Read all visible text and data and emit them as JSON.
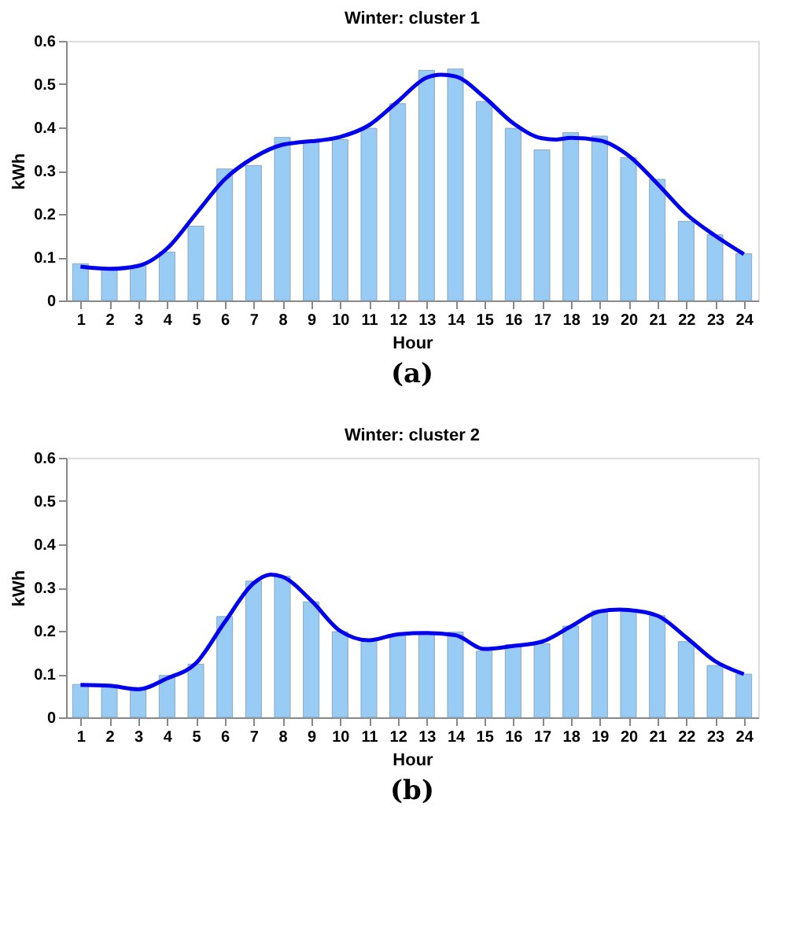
{
  "chart_data": [
    {
      "type": "bar",
      "title": "Winter: cluster 1",
      "xlabel": "Hour",
      "ylabel": "kWh",
      "annotations": [
        "(a)"
      ],
      "xlim": [
        0.5,
        24.5
      ],
      "xticks": [
        1,
        2,
        3,
        4,
        5,
        6,
        7,
        8,
        9,
        10,
        11,
        12,
        13,
        14,
        15,
        16,
        17,
        18,
        19,
        20,
        21,
        22,
        23,
        24
      ],
      "ylim": [
        0,
        0.6
      ],
      "yticks": [
        0,
        0.1,
        0.2,
        0.3,
        0.4,
        0.5,
        0.6
      ],
      "x": [
        1,
        2,
        3,
        4,
        5,
        6,
        7,
        8,
        9,
        10,
        11,
        12,
        13,
        14,
        15,
        16,
        17,
        18,
        19,
        20,
        21,
        22,
        23,
        24
      ],
      "series": [
        {
          "color": "#99ccf5",
          "values": [
            0.085,
            0.075,
            0.08,
            0.112,
            0.172,
            0.304,
            0.312,
            0.377,
            0.365,
            0.372,
            0.398,
            0.455,
            0.532,
            0.535,
            0.46,
            0.398,
            0.348,
            0.388,
            0.38,
            0.33,
            0.28,
            0.183,
            0.152,
            0.108
          ]
        },
        {
          "type": "line",
          "color": "#0000ee",
          "line_style": "solid",
          "marker": "none",
          "x": [
            1,
            2,
            3,
            4,
            5,
            6,
            7,
            8,
            8.5,
            9,
            10,
            11,
            12,
            13,
            13.5,
            14,
            15,
            16,
            17,
            17.5,
            18,
            19,
            20,
            21,
            22,
            23,
            24
          ],
          "values": [
            0.078,
            0.073,
            0.08,
            0.12,
            0.2,
            0.28,
            0.33,
            0.36,
            0.365,
            0.368,
            0.378,
            0.405,
            0.46,
            0.515,
            0.522,
            0.518,
            0.47,
            0.41,
            0.375,
            0.372,
            0.376,
            0.37,
            0.335,
            0.27,
            0.2,
            0.15,
            0.107
          ]
        }
      ]
    },
    {
      "type": "bar",
      "title": "Winter: cluster 2",
      "xlabel": "Hour",
      "ylabel": "kWh",
      "annotations": [
        "(b)"
      ],
      "xlim": [
        0.5,
        24.5
      ],
      "xticks": [
        1,
        2,
        3,
        4,
        5,
        6,
        7,
        8,
        9,
        10,
        11,
        12,
        13,
        14,
        15,
        16,
        17,
        18,
        19,
        20,
        21,
        22,
        23,
        24
      ],
      "ylim": [
        0,
        0.6
      ],
      "yticks": [
        0,
        0.1,
        0.2,
        0.3,
        0.4,
        0.5,
        0.6
      ],
      "x": [
        1,
        2,
        3,
        4,
        5,
        6,
        7,
        8,
        9,
        10,
        11,
        12,
        13,
        14,
        15,
        16,
        17,
        18,
        19,
        20,
        21,
        22,
        23,
        24
      ],
      "series": [
        {
          "color": "#99ccf5",
          "values": [
            0.076,
            0.075,
            0.063,
            0.097,
            0.123,
            0.233,
            0.315,
            0.326,
            0.267,
            0.198,
            0.178,
            0.19,
            0.195,
            0.197,
            0.153,
            0.168,
            0.17,
            0.211,
            0.247,
            0.245,
            0.235,
            0.175,
            0.12,
            0.1
          ]
        },
        {
          "type": "line",
          "color": "#0000ee",
          "line_style": "solid",
          "marker": "none",
          "x": [
            1,
            2,
            3,
            4,
            5,
            6,
            7,
            7.6,
            8,
            9,
            10,
            11,
            12,
            13,
            14,
            15,
            16,
            17,
            18,
            19,
            19.7,
            20,
            21,
            22,
            23,
            24
          ],
          "values": [
            0.075,
            0.073,
            0.065,
            0.09,
            0.125,
            0.22,
            0.31,
            0.33,
            0.325,
            0.27,
            0.2,
            0.178,
            0.192,
            0.195,
            0.19,
            0.158,
            0.165,
            0.175,
            0.21,
            0.245,
            0.249,
            0.248,
            0.235,
            0.185,
            0.13,
            0.1
          ]
        }
      ]
    }
  ]
}
